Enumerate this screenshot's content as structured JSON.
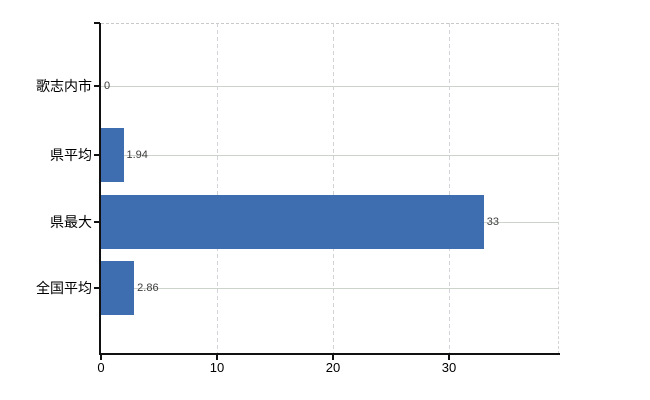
{
  "chart_data": {
    "type": "bar",
    "orientation": "horizontal",
    "title": "",
    "categories": [
      "歌志内市",
      "県平均",
      "県最大",
      "全国平均"
    ],
    "values": [
      0,
      1.94,
      33,
      2.86
    ],
    "value_labels": [
      "0",
      "1.94",
      "33",
      "2.86"
    ],
    "x_tick_labels": [
      "0",
      "10",
      "20",
      "30"
    ],
    "x_tick_values": [
      0,
      10,
      20,
      30
    ],
    "xlim": [
      0,
      39.5
    ],
    "ylabel": "",
    "xlabel": "",
    "legend": "none",
    "grid": true,
    "colors": {
      "bar": "#3e6eb0",
      "axis": "#111111",
      "grid_horizontal": "#ccd3cb",
      "grid_vertical": "#d2d2d8",
      "plot_border_dashed": "#c9c9c9",
      "tick_label": "#000000",
      "value_label": "#3d3d3d",
      "background": "#ffffff"
    }
  }
}
